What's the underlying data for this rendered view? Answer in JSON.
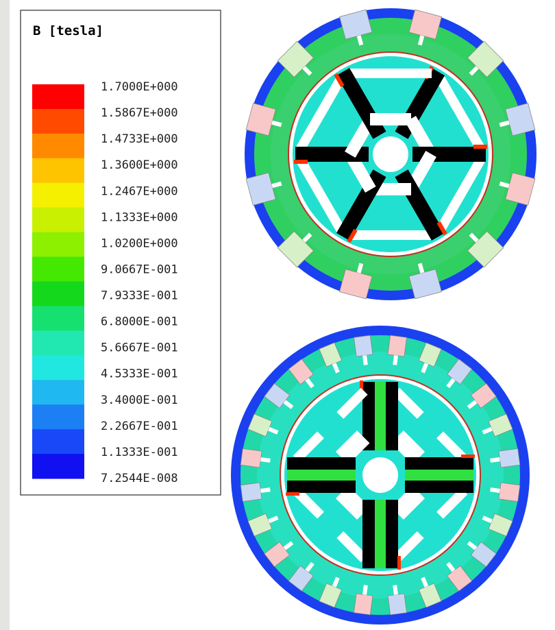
{
  "legend": {
    "title": "B [tesla]",
    "labels": [
      "1.7000E+000",
      "1.5867E+000",
      "1.4733E+000",
      "1.3600E+000",
      "1.2467E+000",
      "1.1333E+000",
      "1.0200E+000",
      "9.0667E-001",
      "7.9333E-001",
      "6.8000E-001",
      "5.6667E-001",
      "4.5333E-001",
      "3.4000E-001",
      "2.2667E-001",
      "1.1333E-001",
      "7.2544E-008"
    ],
    "colors": [
      "#ff0000",
      "#ff4a00",
      "#ff8a00",
      "#ffc400",
      "#f4f000",
      "#c8f000",
      "#8cf000",
      "#44e800",
      "#14d81c",
      "#16e070",
      "#20e8b0",
      "#20e8e0",
      "#20b8f0",
      "#1c80f4",
      "#1848f8",
      "#1010f0"
    ]
  }
}
